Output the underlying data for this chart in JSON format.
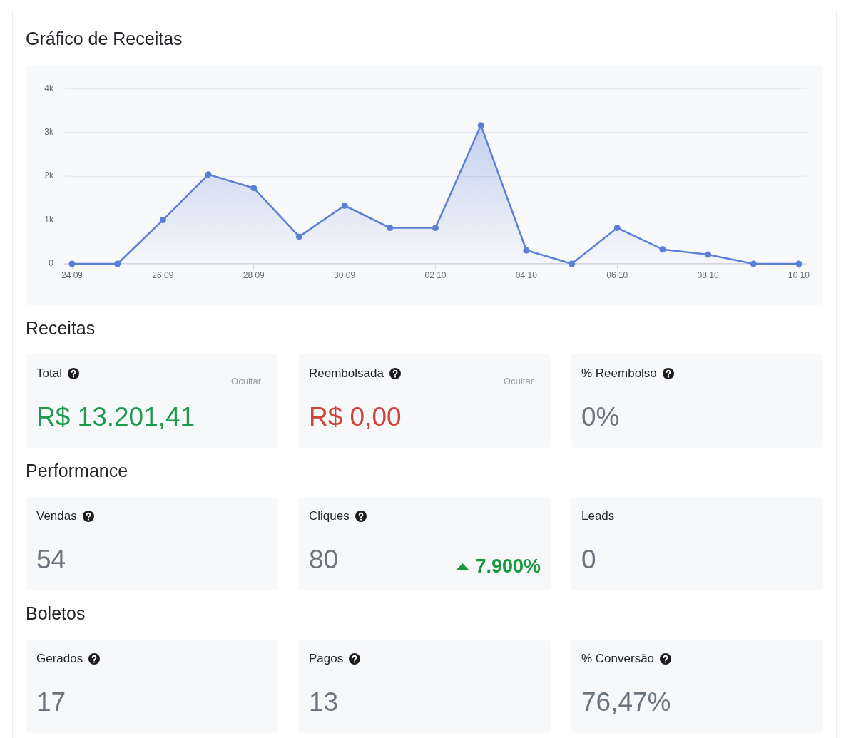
{
  "chart_data": [
    {
      "type": "area",
      "title": "Gráfico de Receitas",
      "categories": [
        "24 09",
        null,
        "26 09",
        null,
        "28 09",
        null,
        "30 09",
        null,
        "02 10",
        null,
        "04 10",
        null,
        "06 10",
        null,
        "08 10",
        null,
        "10 10"
      ],
      "values": [
        0,
        0,
        1000,
        2040,
        1730,
        620,
        1330,
        820,
        820,
        3160,
        310,
        0,
        820,
        330,
        210,
        0,
        0
      ],
      "color": "#5b7fd6",
      "ylim": [
        0,
        4000
      ],
      "yticks": [
        0,
        {
          "value": 1000,
          "label": "1k"
        },
        {
          "value": 2000,
          "label": "2k"
        },
        {
          "value": 3000,
          "label": "3k"
        },
        {
          "value": 4000,
          "label": "4k"
        }
      ],
      "grid": "y",
      "legend": false,
      "marker": "circle"
    },
    {
      "type": "other",
      "title": "Receitas",
      "categories": [
        "Total",
        "Reembolsada",
        "% Reembolso"
      ],
      "value_labels": [
        "R$ 13.201,41",
        "R$ 0,00",
        "0%"
      ],
      "annotations": [
        {
          "text": "Ocultar",
          "x": "Total"
        },
        {
          "text": "Ocultar",
          "x": "Reembolsada"
        }
      ]
    },
    {
      "type": "other",
      "title": "Performance",
      "categories": [
        "Vendas",
        "Cliques",
        "Leads"
      ],
      "value_labels": [
        "54",
        "80",
        "0"
      ],
      "annotations": [
        {
          "text": "7.900%",
          "x": "Cliques"
        }
      ]
    },
    {
      "type": "other",
      "title": "Boletos",
      "categories": [
        "Gerados",
        "Pagos",
        "% Conversão"
      ],
      "value_labels": [
        "17",
        "13",
        "76,47%"
      ]
    }
  ]
}
